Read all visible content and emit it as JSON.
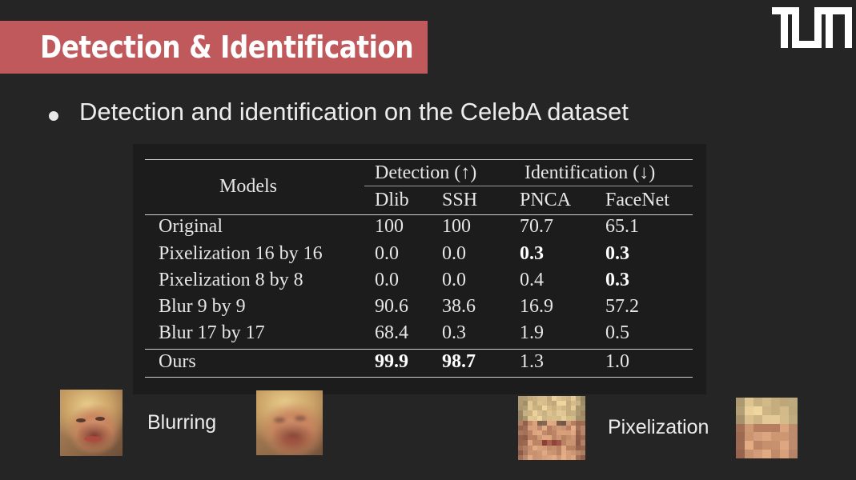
{
  "slide": {
    "title": "Detection & Identification",
    "bullet": "Detection and identification on the CelebA dataset",
    "logo": "TUM"
  },
  "table": {
    "header_models": "Models",
    "group_detection": "Detection (↑)",
    "group_identification": "Identification (↓)",
    "columns": [
      "Dlib",
      "SSH",
      "PNCA",
      "FaceNet"
    ],
    "rows": [
      {
        "model": "Original",
        "values": [
          "100",
          "100",
          "70.7",
          "65.1"
        ],
        "bold": [
          false,
          false,
          false,
          false
        ]
      },
      {
        "model": "Pixelization 16 by 16",
        "values": [
          "0.0",
          "0.0",
          "0.3",
          "0.3"
        ],
        "bold": [
          false,
          false,
          true,
          true
        ]
      },
      {
        "model": "Pixelization 8 by 8",
        "values": [
          "0.0",
          "0.0",
          "0.4",
          "0.3"
        ],
        "bold": [
          false,
          false,
          false,
          true
        ]
      },
      {
        "model": "Blur 9 by 9",
        "values": [
          "90.6",
          "38.6",
          "16.9",
          "57.2"
        ],
        "bold": [
          false,
          false,
          false,
          false
        ]
      },
      {
        "model": "Blur 17 by 17",
        "values": [
          "68.4",
          "0.3",
          "1.9",
          "0.5"
        ],
        "bold": [
          false,
          false,
          false,
          false
        ]
      },
      {
        "model": "Ours",
        "values": [
          "99.9",
          "98.7",
          "1.3",
          "1.0"
        ],
        "bold": [
          true,
          true,
          false,
          false
        ]
      }
    ]
  },
  "examples": {
    "blurring_label": "Blurring",
    "pixelization_label": "Pixelization"
  },
  "colors": {
    "background": "#252525",
    "title_bar": "#c0595c",
    "table_panel": "#1c1c1c"
  }
}
